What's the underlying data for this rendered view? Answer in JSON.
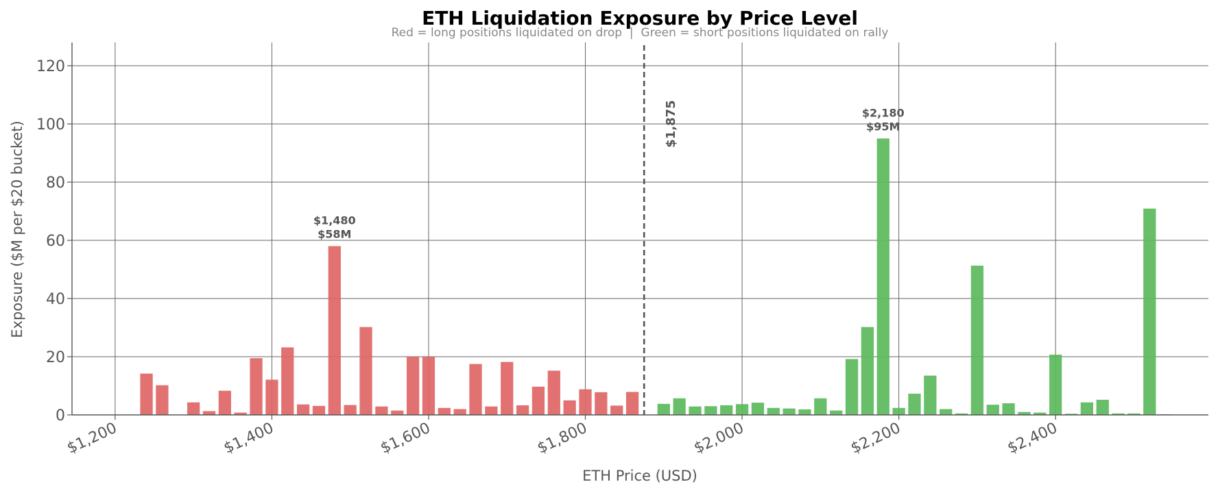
{
  "chart_data": {
    "type": "bar",
    "title": "ETH Liquidation Exposure by Price Level",
    "subtitle": "Red = long positions liquidated on drop  |  Green = short positions liquidated on rally",
    "xlabel": "ETH Price (USD)",
    "ylabel": "Exposure ($M per $20 bucket)",
    "xlim": [
      1145,
      2595
    ],
    "ylim": [
      0,
      128
    ],
    "x_ticks": [
      1200,
      1400,
      1600,
      1800,
      2000,
      2200,
      2400
    ],
    "x_tick_labels": [
      "$1,200",
      "$1,400",
      "$1,600",
      "$1,800",
      "$2,000",
      "$2,200",
      "$2,400"
    ],
    "y_ticks": [
      0,
      20,
      40,
      60,
      80,
      100,
      120
    ],
    "y_tick_labels": [
      "0",
      "20",
      "40",
      "60",
      "80",
      "100",
      "120"
    ],
    "grid": true,
    "current_price": 1875,
    "current_price_label": "$1,875",
    "colors": {
      "long": "#e06666",
      "short": "#5cb85c",
      "title": "#1a8799"
    },
    "series": [
      {
        "name": "long",
        "x": [
          1240,
          1260,
          1300,
          1320,
          1340,
          1360,
          1380,
          1400,
          1420,
          1440,
          1460,
          1480,
          1500,
          1520,
          1540,
          1560,
          1580,
          1600,
          1620,
          1640,
          1660,
          1680,
          1700,
          1720,
          1740,
          1760,
          1780,
          1800,
          1820,
          1840,
          1860
        ],
        "values": [
          14.2,
          10.2,
          4.3,
          1.3,
          8.3,
          0.8,
          19.5,
          12.1,
          23.2,
          3.6,
          3.1,
          58,
          3.4,
          30.2,
          2.9,
          1.5,
          20,
          20,
          2.4,
          2,
          17.5,
          2.9,
          18.2,
          3.3,
          9.7,
          15.2,
          5,
          8.8,
          7.8,
          3.2,
          7.9
        ]
      },
      {
        "name": "short",
        "x": [
          1900,
          1920,
          1940,
          1960,
          1980,
          2000,
          2020,
          2040,
          2060,
          2080,
          2100,
          2120,
          2140,
          2160,
          2180,
          2200,
          2220,
          2240,
          2260,
          2280,
          2300,
          2320,
          2340,
          2360,
          2380,
          2400,
          2420,
          2440,
          2460,
          2480,
          2500,
          2520,
          2540
        ],
        "values": [
          3.8,
          5.7,
          2.9,
          3,
          3.3,
          3.7,
          4.2,
          2.4,
          2.2,
          1.9,
          5.7,
          1.5,
          19.2,
          30.2,
          95,
          2.4,
          7.3,
          13.5,
          2,
          0.5,
          51.3,
          3.5,
          4,
          1,
          0.8,
          20.7,
          0.4,
          4.3,
          5.2,
          0.5,
          0.5,
          70.9,
          0.2
        ]
      }
    ],
    "annotations": [
      {
        "x": 1480,
        "value": 58,
        "lines": [
          "$1,480",
          "$58M"
        ]
      },
      {
        "x": 2180,
        "value": 95,
        "lines": [
          "$2,180",
          "$95M"
        ]
      }
    ]
  }
}
